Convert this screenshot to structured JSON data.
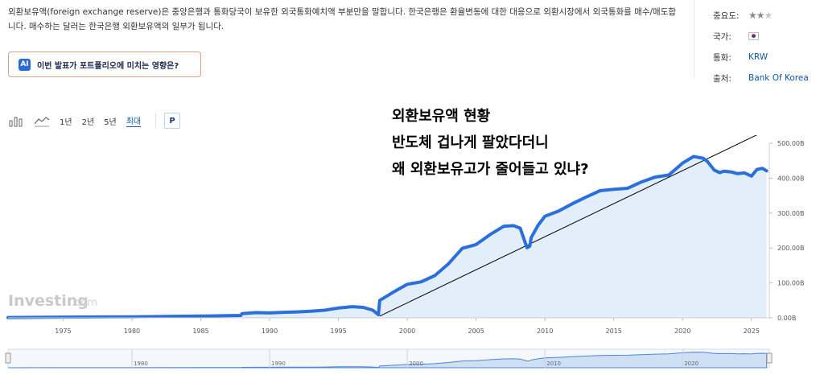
{
  "description": "외환보유액(foreign exchange reserve)은 중앙은행과 통화당국이 보유한 외국통화예치액 부분만을 말합니다. 한국은행은 환율변동에 대한 대응으로 외환시장에서 외국통화를 매수/매도합니다. 매수하는 달러는 한국은행 외환보유액의 일부가 됩니다.",
  "ai_button": {
    "badge": "AI",
    "label": "이번 발표가 포트폴리오에 미치는 영향은?"
  },
  "meta": {
    "importance_label": "중요도:",
    "importance_stars": 2,
    "importance_max": 3,
    "country_label": "국가:",
    "country_flag": "south-korea-flag-icon",
    "currency_label": "통화:",
    "currency_value": "KRW",
    "source_label": "출처:",
    "source_value": "Bank Of Korea"
  },
  "toolbar": {
    "ranges": [
      "1년",
      "2년",
      "5년",
      "최대"
    ],
    "active_range": "최대",
    "p_button": "P"
  },
  "overlay_text": [
    "외환보유액 현황",
    "반도체 겁나게 팔았다더니",
    "왜 외환보유고가 줄어들고 있냐?"
  ],
  "watermark": {
    "main": "Investing",
    "suffix": ".com"
  },
  "colors": {
    "line": "#2b6fdc",
    "fill": "#e3eefb",
    "link": "#1256a0",
    "trend": "#000000"
  },
  "chart_data": {
    "type": "area",
    "title": "",
    "xlabel": "",
    "ylabel": "",
    "y_unit_suffix": "B",
    "xlim": [
      1971,
      2026.3
    ],
    "ylim": [
      0,
      500
    ],
    "yticks": [
      0,
      100,
      200,
      300,
      400,
      500
    ],
    "ytick_labels": [
      "0.00B",
      "100.00B",
      "200.00B",
      "300.00B",
      "400.00B",
      "500.00B"
    ],
    "xticks": [
      1975,
      1980,
      1985,
      1990,
      1995,
      2000,
      2005,
      2010,
      2015,
      2020,
      2025
    ],
    "navigator_ticks": [
      1980,
      1990,
      2000,
      2010,
      2020
    ],
    "grid": false,
    "series": [
      {
        "x": [
          1971,
          1975,
          1980,
          1985,
          1987.9,
          1988,
          1989,
          1990,
          1991,
          1992,
          1993,
          1994,
          1995,
          1996,
          1996.8,
          1997.5,
          1997.9,
          1998,
          1999,
          2000,
          2001,
          2002,
          2003,
          2004,
          2005,
          2006,
          2007,
          2007.7,
          2008.2,
          2008.7,
          2008.9,
          2009,
          2009.5,
          2010,
          2011,
          2012,
          2013,
          2014,
          2015,
          2016,
          2017,
          2018,
          2019,
          2020,
          2020.8,
          2021.5,
          2021.8,
          2022.3,
          2022.7,
          2023,
          2023.5,
          2024,
          2024.5,
          2025,
          2025.4,
          2025.8,
          2026.1
        ],
        "y": [
          1,
          2,
          3,
          5,
          7,
          12,
          15,
          14,
          16,
          17,
          19,
          22,
          28,
          32,
          30,
          22,
          9,
          50,
          74,
          96,
          103,
          121,
          155,
          199,
          210,
          238,
          262,
          264,
          257,
          201,
          205,
          230,
          265,
          291,
          306,
          327,
          346,
          364,
          368,
          371,
          389,
          403,
          409,
          443,
          462,
          457,
          448,
          423,
          416,
          420,
          418,
          413,
          415,
          406,
          425,
          428,
          421
        ]
      }
    ],
    "trendline": {
      "x": [
        1998,
        2026.3
      ],
      "y": [
        5,
        541
      ]
    }
  }
}
